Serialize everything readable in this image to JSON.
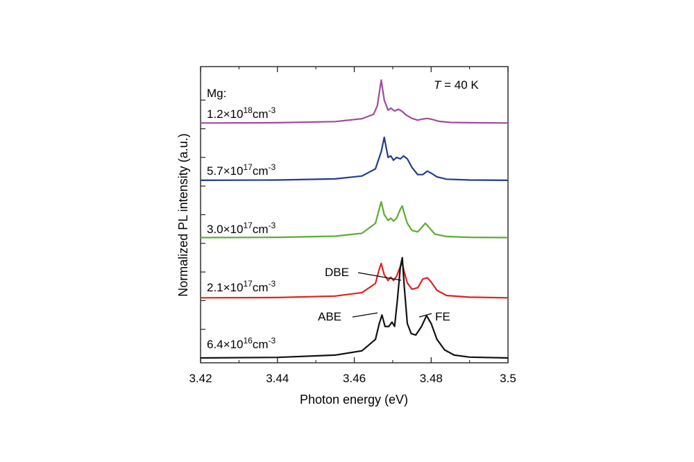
{
  "chart_data": {
    "type": "line",
    "xlabel": "Photon energy (eV)",
    "ylabel": "Normalized PL intensity (a.u.)",
    "xlim": [
      3.42,
      3.5
    ],
    "xticks": [
      "3.42",
      "3.44",
      "3.46",
      "3.48",
      "3.5"
    ],
    "ylim": [
      0,
      1
    ],
    "y_tick_labels": false,
    "grid": false,
    "temperature_label": {
      "italic_part": "T",
      "rest": " = 40 K"
    },
    "series_header": "Mg:",
    "series": [
      {
        "name": "1.2×10^18cm^-3",
        "label_base": "1.2×10",
        "label_exp": "18",
        "label_unit": "cm",
        "label_unit_exp": "-3",
        "color": "#a04aa0",
        "offset": 0.82,
        "x": [
          3.42,
          3.44,
          3.455,
          3.462,
          3.465,
          3.466,
          3.4665,
          3.467,
          3.4678,
          3.4688,
          3.4695,
          3.4705,
          3.4715,
          3.4725,
          3.4735,
          3.475,
          3.4765,
          3.4778,
          3.479,
          3.4805,
          3.482,
          3.485,
          3.49,
          3.5
        ],
        "y": [
          0.82,
          0.821,
          0.825,
          0.835,
          0.85,
          0.88,
          0.925,
          0.97,
          0.9,
          0.865,
          0.872,
          0.862,
          0.868,
          0.86,
          0.848,
          0.836,
          0.83,
          0.834,
          0.836,
          0.832,
          0.826,
          0.822,
          0.821,
          0.82
        ]
      },
      {
        "name": "5.7×10^17cm^-3",
        "label_base": "5.7×10",
        "label_exp": "17",
        "label_unit": "cm",
        "label_unit_exp": "-3",
        "color": "#1e3d8f",
        "offset": 0.62,
        "x": [
          3.42,
          3.44,
          3.455,
          3.462,
          3.4655,
          3.467,
          3.4678,
          3.4688,
          3.4695,
          3.4702,
          3.471,
          3.472,
          3.4728,
          3.4738,
          3.475,
          3.4765,
          3.4778,
          3.479,
          3.48,
          3.4815,
          3.484,
          3.49,
          3.5
        ],
        "y": [
          0.62,
          0.621,
          0.625,
          0.635,
          0.66,
          0.72,
          0.77,
          0.7,
          0.705,
          0.69,
          0.7,
          0.695,
          0.705,
          0.695,
          0.665,
          0.64,
          0.64,
          0.652,
          0.645,
          0.632,
          0.624,
          0.621,
          0.62
        ]
      },
      {
        "name": "3.0×10^17cm^-3",
        "label_base": "3.0×10",
        "label_exp": "17",
        "label_unit": "cm",
        "label_unit_exp": "-3",
        "color": "#5aac32",
        "offset": 0.42,
        "x": [
          3.42,
          3.44,
          3.455,
          3.462,
          3.4655,
          3.4665,
          3.467,
          3.4678,
          3.4688,
          3.4695,
          3.4702,
          3.471,
          3.472,
          3.4725,
          3.473,
          3.4738,
          3.475,
          3.4765,
          3.4775,
          3.4785,
          3.4795,
          3.481,
          3.484,
          3.49,
          3.5
        ],
        "y": [
          0.42,
          0.421,
          0.425,
          0.435,
          0.47,
          0.52,
          0.545,
          0.5,
          0.48,
          0.488,
          0.478,
          0.488,
          0.52,
          0.53,
          0.505,
          0.47,
          0.445,
          0.44,
          0.455,
          0.47,
          0.455,
          0.432,
          0.424,
          0.421,
          0.42
        ]
      },
      {
        "name": "2.1×10^17cm^-3",
        "label_base": "2.1×10",
        "label_exp": "17",
        "label_unit": "cm",
        "label_unit_exp": "-3",
        "color": "#e02020",
        "offset": 0.21,
        "x": [
          3.42,
          3.44,
          3.455,
          3.462,
          3.4655,
          3.4665,
          3.467,
          3.4678,
          3.4688,
          3.4695,
          3.4702,
          3.471,
          3.472,
          3.4725,
          3.473,
          3.4738,
          3.475,
          3.4765,
          3.4778,
          3.479,
          3.48,
          3.4815,
          3.484,
          3.49,
          3.5
        ],
        "y": [
          0.21,
          0.211,
          0.216,
          0.228,
          0.26,
          0.31,
          0.33,
          0.29,
          0.27,
          0.282,
          0.27,
          0.285,
          0.32,
          0.33,
          0.3,
          0.262,
          0.24,
          0.245,
          0.275,
          0.28,
          0.265,
          0.236,
          0.218,
          0.212,
          0.21
        ]
      },
      {
        "name": "6.4×10^16cm^-3",
        "label_base": "6.4×10",
        "label_exp": "16",
        "label_unit": "cm",
        "label_unit_exp": "-3",
        "color": "#111111",
        "offset": 0.0,
        "x": [
          3.42,
          3.44,
          3.455,
          3.462,
          3.4655,
          3.4665,
          3.4672,
          3.468,
          3.469,
          3.4698,
          3.4705,
          3.4712,
          3.472,
          3.4725,
          3.473,
          3.4738,
          3.4748,
          3.476,
          3.4775,
          3.4788,
          3.48,
          3.4815,
          3.4835,
          3.486,
          3.49,
          3.5
        ],
        "y": [
          0.0,
          0.002,
          0.01,
          0.025,
          0.065,
          0.12,
          0.15,
          0.11,
          0.11,
          0.125,
          0.11,
          0.2,
          0.32,
          0.35,
          0.25,
          0.12,
          0.085,
          0.08,
          0.11,
          0.148,
          0.12,
          0.065,
          0.028,
          0.01,
          0.003,
          0.0
        ]
      }
    ],
    "annotations": [
      {
        "text": "DBE",
        "x": 3.4725,
        "y": 0.285
      },
      {
        "text": "ABE",
        "x": 3.4672,
        "y": 0.148
      },
      {
        "text": "FE",
        "x": 3.4792,
        "y": 0.146
      }
    ]
  }
}
